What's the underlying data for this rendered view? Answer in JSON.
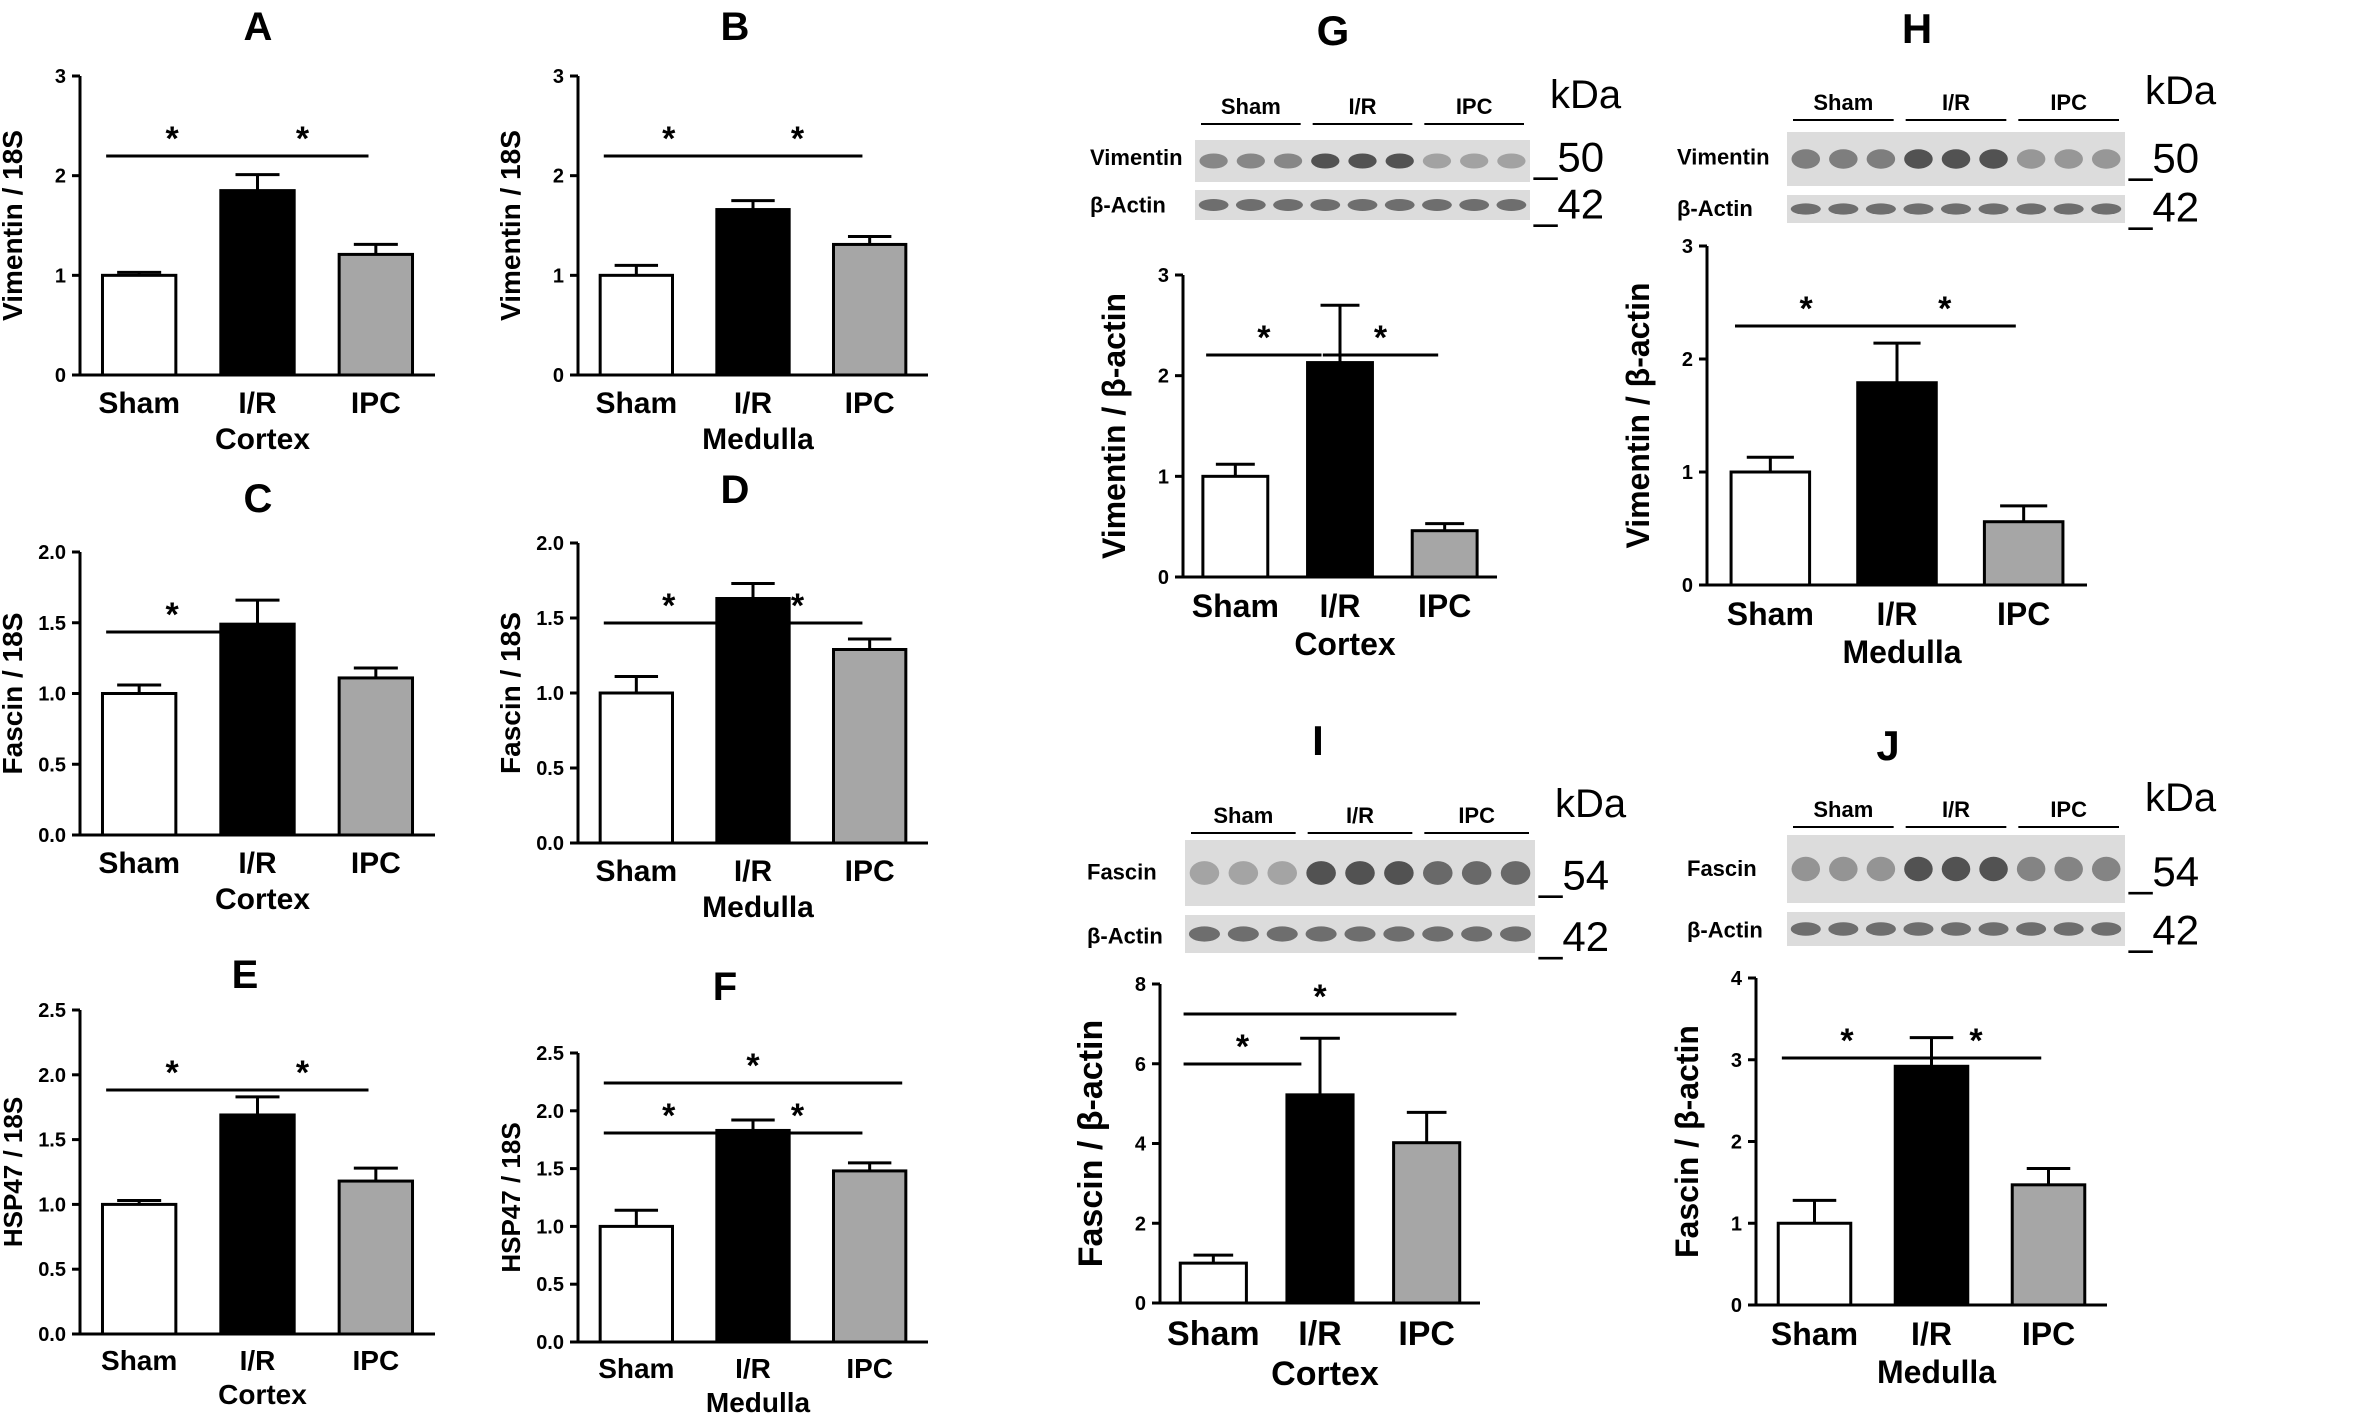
{
  "colors": {
    "sham": "#ffffff",
    "ir": "#000000",
    "ipc": "#a6a6a6",
    "axis": "#000000",
    "blot_bg": "#dcdcdc",
    "band": "#4a4a4a"
  },
  "chart_data": [
    {
      "id": "A",
      "type": "bar",
      "letter": "A",
      "categories": [
        "Sham",
        "I/R",
        "IPC"
      ],
      "values": [
        1.0,
        1.85,
        1.21
      ],
      "errors": [
        0.03,
        0.16,
        0.1
      ],
      "ylim": [
        0,
        3
      ],
      "yticks": [
        "0",
        "1",
        "2",
        "3"
      ],
      "ylabel": "Vimentin / 18S",
      "xlabel": "Cortex",
      "significance": [
        {
          "from": 0,
          "to": 1,
          "label": "*"
        },
        {
          "from": 1,
          "to": 2,
          "label": "*"
        }
      ]
    },
    {
      "id": "B",
      "type": "bar",
      "letter": "B",
      "categories": [
        "Sham",
        "I/R",
        "IPC"
      ],
      "values": [
        1.0,
        1.66,
        1.31
      ],
      "errors": [
        0.1,
        0.09,
        0.08
      ],
      "ylim": [
        0,
        3
      ],
      "yticks": [
        "0",
        "1",
        "2",
        "3"
      ],
      "ylabel": "Vimentin / 18S",
      "xlabel": "Medulla",
      "significance": [
        {
          "from": 0,
          "to": 1,
          "label": "*"
        },
        {
          "from": 1,
          "to": 2,
          "label": "*"
        }
      ]
    },
    {
      "id": "C",
      "type": "bar",
      "letter": "C",
      "categories": [
        "Sham",
        "I/R",
        "IPC"
      ],
      "values": [
        1.0,
        1.49,
        1.11
      ],
      "errors": [
        0.06,
        0.17,
        0.07
      ],
      "ylim": [
        0,
        2
      ],
      "yticks": [
        "0.0",
        "0.5",
        "1.0",
        "1.5",
        "2.0"
      ],
      "ylabel": "Fascin / 18S",
      "xlabel": "Cortex",
      "significance": [
        {
          "from": 0,
          "to": 1,
          "label": "*"
        }
      ]
    },
    {
      "id": "D",
      "type": "bar",
      "letter": "D",
      "categories": [
        "Sham",
        "I/R",
        "IPC"
      ],
      "values": [
        1.0,
        1.63,
        1.29
      ],
      "errors": [
        0.11,
        0.1,
        0.07
      ],
      "ylim": [
        0,
        2
      ],
      "yticks": [
        "0.0",
        "0.5",
        "1.0",
        "1.5",
        "2.0"
      ],
      "ylabel": "Fascin / 18S",
      "xlabel": "Medulla",
      "significance": [
        {
          "from": 0,
          "to": 1,
          "label": "*"
        },
        {
          "from": 1,
          "to": 2,
          "label": "*"
        }
      ]
    },
    {
      "id": "E",
      "type": "bar",
      "letter": "E",
      "categories": [
        "Sham",
        "I/R",
        "IPC"
      ],
      "values": [
        1.0,
        1.69,
        1.18
      ],
      "errors": [
        0.03,
        0.14,
        0.1
      ],
      "ylim": [
        0,
        2.5
      ],
      "yticks": [
        "0.0",
        "0.5",
        "1.0",
        "1.5",
        "2.0",
        "2.5"
      ],
      "ylabel": "HSP47 / 18S",
      "xlabel": "Cortex",
      "significance": [
        {
          "from": 0,
          "to": 1,
          "label": "*"
        },
        {
          "from": 1,
          "to": 2,
          "label": "*"
        }
      ]
    },
    {
      "id": "F",
      "type": "bar",
      "letter": "F",
      "categories": [
        "Sham",
        "I/R",
        "IPC"
      ],
      "values": [
        1.0,
        1.83,
        1.48
      ],
      "errors": [
        0.14,
        0.09,
        0.07
      ],
      "ylim": [
        0,
        2.5
      ],
      "yticks": [
        "0.0",
        "0.5",
        "1.0",
        "1.5",
        "2.0",
        "2.5"
      ],
      "ylabel": "HSP47 / 18S",
      "xlabel": "Medulla",
      "significance": [
        {
          "from": 0,
          "to": 2,
          "label": "*"
        },
        {
          "from": 0,
          "to": 1,
          "label": "*"
        },
        {
          "from": 1,
          "to": 2,
          "label": "*"
        }
      ]
    },
    {
      "id": "G",
      "type": "bar",
      "letter": "G",
      "categories": [
        "Sham",
        "I/R",
        "IPC"
      ],
      "values": [
        1.0,
        2.13,
        0.46
      ],
      "errors": [
        0.12,
        0.57,
        0.07
      ],
      "ylim": [
        0,
        3
      ],
      "yticks": [
        "0",
        "1",
        "2",
        "3"
      ],
      "ylabel": "Vimentin / β-actin",
      "xlabel": "Cortex",
      "significance": [
        {
          "from": 0,
          "to": 1,
          "label": "*"
        },
        {
          "from": 1,
          "to": 2,
          "label": "*"
        }
      ],
      "blot": {
        "groups": [
          "Sham",
          "I/R",
          "IPC"
        ],
        "rows": [
          "Vimentin",
          "β-Actin"
        ],
        "markers": [
          "_50",
          "_42"
        ],
        "unit": "kDa"
      }
    },
    {
      "id": "H",
      "type": "bar",
      "letter": "H",
      "categories": [
        "Sham",
        "I/R",
        "IPC"
      ],
      "values": [
        1.0,
        1.79,
        0.56
      ],
      "errors": [
        0.13,
        0.35,
        0.14
      ],
      "ylim": [
        0,
        3
      ],
      "yticks": [
        "0",
        "1",
        "2",
        "3"
      ],
      "ylabel": "Vimentin / β-actin",
      "xlabel": "Medulla",
      "significance": [
        {
          "from": 0,
          "to": 1,
          "label": "*"
        },
        {
          "from": 1,
          "to": 2,
          "label": "*"
        }
      ],
      "blot": {
        "groups": [
          "Sham",
          "I/R",
          "IPC"
        ],
        "rows": [
          "Vimentin",
          "β-Actin"
        ],
        "markers": [
          "_50",
          "_42"
        ],
        "unit": "kDa"
      }
    },
    {
      "id": "I",
      "type": "bar",
      "letter": "I",
      "categories": [
        "Sham",
        "I/R",
        "IPC"
      ],
      "values": [
        1.0,
        5.22,
        4.02
      ],
      "errors": [
        0.2,
        1.42,
        0.76
      ],
      "ylim": [
        0,
        8
      ],
      "yticks": [
        "0",
        "2",
        "4",
        "6",
        "8"
      ],
      "ylabel": "Fascin / β-actin",
      "xlabel": "Cortex",
      "significance": [
        {
          "from": 0,
          "to": 2,
          "label": "*"
        },
        {
          "from": 0,
          "to": 1,
          "label": "*"
        }
      ],
      "blot": {
        "groups": [
          "Sham",
          "I/R",
          "IPC"
        ],
        "rows": [
          "Fascin",
          "β-Actin"
        ],
        "markers": [
          "_54",
          "_42"
        ],
        "unit": "kDa"
      }
    },
    {
      "id": "J",
      "type": "bar",
      "letter": "J",
      "categories": [
        "Sham",
        "I/R",
        "IPC"
      ],
      "values": [
        1.0,
        2.92,
        1.47
      ],
      "errors": [
        0.28,
        0.35,
        0.2
      ],
      "ylim": [
        0,
        4
      ],
      "yticks": [
        "0",
        "1",
        "2",
        "3",
        "4"
      ],
      "ylabel": "Fascin / β-actin",
      "xlabel": "Medulla",
      "significance": [
        {
          "from": 0,
          "to": 1,
          "label": "*"
        },
        {
          "from": 1,
          "to": 2,
          "label": "*"
        }
      ],
      "blot": {
        "groups": [
          "Sham",
          "I/R",
          "IPC"
        ],
        "rows": [
          "Fascin",
          "β-Actin"
        ],
        "markers": [
          "_54",
          "_42"
        ],
        "unit": "kDa"
      }
    }
  ]
}
